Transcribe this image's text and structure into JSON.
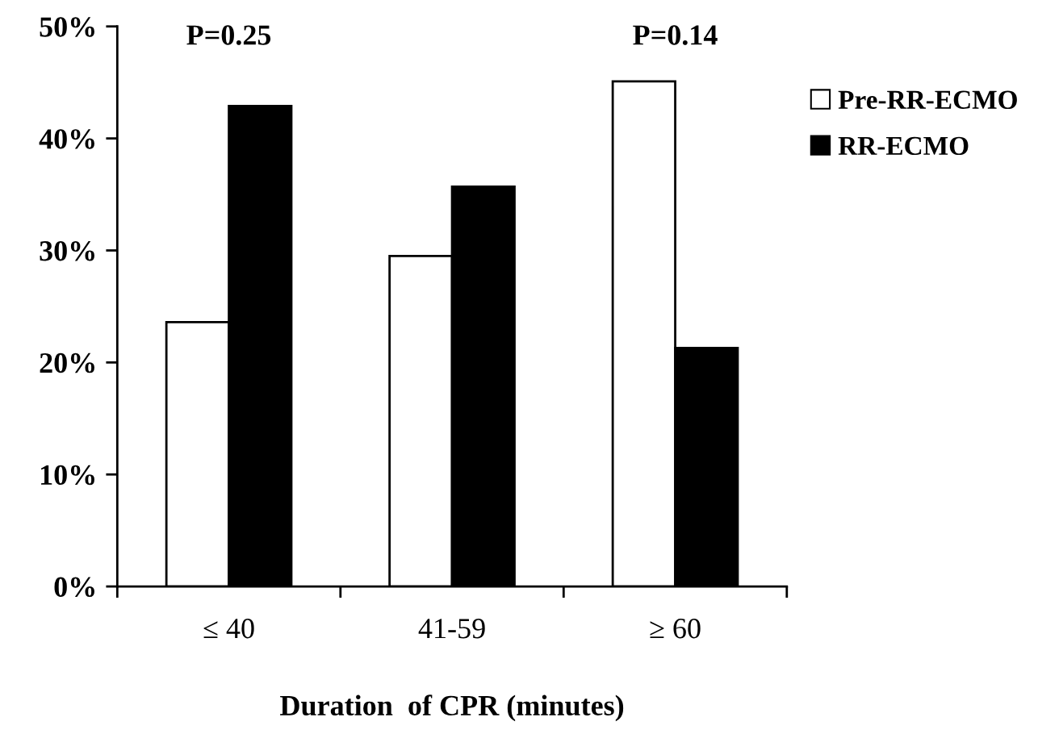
{
  "chart_data": {
    "type": "bar",
    "xlabel": "Duration  of CPR (minutes)",
    "categories": [
      "≤ 40",
      "41-59",
      "≥ 60"
    ],
    "series": [
      {
        "name": "Pre-RR-ECMO",
        "color": "#ffffff",
        "values": [
          23.6,
          29.5,
          45.1
        ]
      },
      {
        "name": "RR-ECMO",
        "color": "#000000",
        "values": [
          42.9,
          35.7,
          21.3
        ]
      }
    ],
    "ylim": [
      0,
      50
    ],
    "yticks": [
      {
        "value": 0,
        "label": "0%"
      },
      {
        "value": 10,
        "label": "10%"
      },
      {
        "value": 20,
        "label": "20%"
      },
      {
        "value": 30,
        "label": "30%"
      },
      {
        "value": 40,
        "label": "40%"
      },
      {
        "value": 50,
        "label": "50%"
      }
    ],
    "annotations": [
      "P=0.25",
      "P=0.14"
    ],
    "grid": false,
    "legend": "right"
  }
}
